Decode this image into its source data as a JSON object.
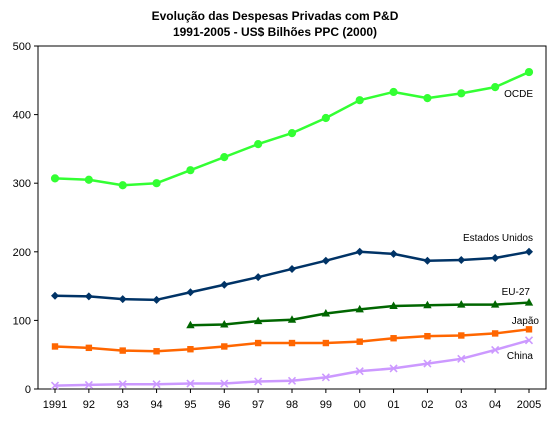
{
  "chart_data": {
    "type": "line",
    "title": "Evolução das Despesas Privadas com P&D",
    "subtitle": "1991-2005 - US$ Bilhões PPC (2000)",
    "categories": [
      "1991",
      "92",
      "93",
      "94",
      "95",
      "96",
      "97",
      "98",
      "99",
      "00",
      "01",
      "02",
      "03",
      "04",
      "2005"
    ],
    "ylim": [
      0,
      500
    ],
    "yticks": [
      0,
      100,
      200,
      300,
      400,
      500
    ],
    "grid": false,
    "legend": "inline labels",
    "series": [
      {
        "name": "OCDE",
        "color": "#33ff33",
        "marker": "circle",
        "values": [
          307,
          305,
          297,
          300,
          319,
          338,
          357,
          373,
          395,
          421,
          433,
          424,
          431,
          440,
          462
        ]
      },
      {
        "name": "Estados Unidos",
        "color": "#003366",
        "marker": "diamond",
        "values": [
          136,
          135,
          131,
          130,
          141,
          152,
          163,
          175,
          187,
          200,
          197,
          187,
          188,
          191,
          200
        ]
      },
      {
        "name": "EU-27",
        "color": "#006600",
        "marker": "triangle",
        "values": [
          null,
          null,
          null,
          null,
          93,
          94,
          99,
          101,
          110,
          116,
          121,
          122,
          123,
          123,
          126
        ]
      },
      {
        "name": "Japão",
        "color": "#ff6600",
        "marker": "square",
        "values": [
          62,
          60,
          56,
          55,
          58,
          62,
          67,
          67,
          67,
          69,
          74,
          77,
          78,
          81,
          87
        ]
      },
      {
        "name": "China",
        "color": "#cc99ff",
        "marker": "x",
        "values": [
          5,
          6,
          7,
          7,
          8,
          8,
          11,
          12,
          17,
          26,
          30,
          37,
          44,
          57,
          71
        ]
      }
    ]
  }
}
